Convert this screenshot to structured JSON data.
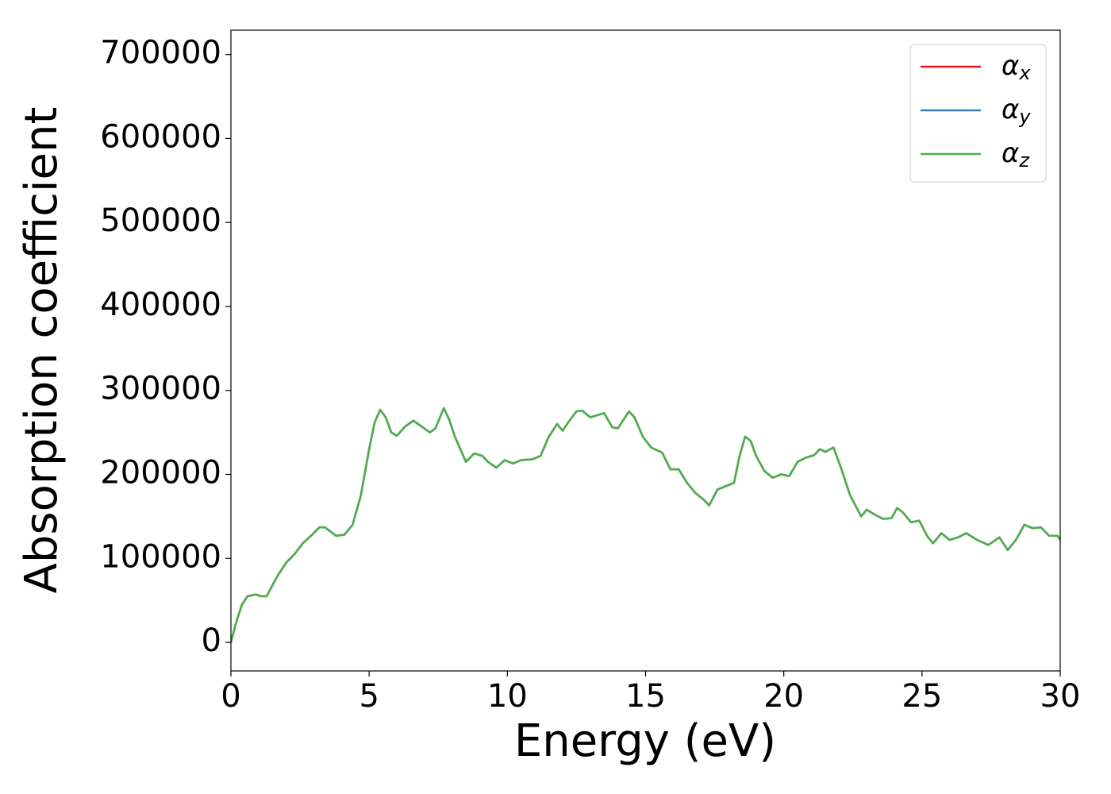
{
  "chart_data": {
    "type": "line",
    "xlabel": "Energy (eV)",
    "ylabel": "Absorption coefficient",
    "x": [
      0,
      0.2,
      0.4,
      0.6,
      0.9,
      1.1,
      1.3,
      1.5,
      1.7,
      2.0,
      2.3,
      2.6,
      2.9,
      3.2,
      3.4,
      3.6,
      3.8,
      4.1,
      4.4,
      4.7,
      5.0,
      5.2,
      5.4,
      5.6,
      5.8,
      6.0,
      6.3,
      6.6,
      6.9,
      7.2,
      7.4,
      7.7,
      7.9,
      8.1,
      8.3,
      8.5,
      8.8,
      9.1,
      9.3,
      9.6,
      9.9,
      10.2,
      10.5,
      10.9,
      11.2,
      11.5,
      11.8,
      12.0,
      12.2,
      12.5,
      12.7,
      13.0,
      13.3,
      13.5,
      13.8,
      14.0,
      14.4,
      14.6,
      14.9,
      15.2,
      15.6,
      15.9,
      16.2,
      16.5,
      16.8,
      17.1,
      17.3,
      17.6,
      17.9,
      18.2,
      18.4,
      18.6,
      18.8,
      19.0,
      19.3,
      19.6,
      19.9,
      20.2,
      20.5,
      20.8,
      21.1,
      21.3,
      21.5,
      21.8,
      22.1,
      22.4,
      22.8,
      23.0,
      23.3,
      23.6,
      23.9,
      24.1,
      24.3,
      24.6,
      24.9,
      25.2,
      25.4,
      25.7,
      26.0,
      26.3,
      26.6,
      27.0,
      27.4,
      27.8,
      28.1,
      28.4,
      28.7,
      29.0,
      29.3,
      29.6,
      29.9,
      30.0
    ],
    "series": [
      {
        "name": "αx",
        "color": "#e41a1c",
        "values": [
          0,
          25000,
          45000,
          55000,
          57000,
          55000,
          55000,
          68000,
          80000,
          95000,
          105000,
          118000,
          127000,
          137000,
          137000,
          132000,
          127000,
          128000,
          140000,
          175000,
          230000,
          262000,
          277000,
          268000,
          250000,
          246000,
          257000,
          264000,
          257000,
          250000,
          255000,
          279000,
          265000,
          245000,
          230000,
          215000,
          225000,
          222000,
          215000,
          208000,
          217000,
          213000,
          217000,
          218000,
          222000,
          245000,
          260000,
          252000,
          262000,
          275000,
          276000,
          268000,
          271000,
          273000,
          256000,
          255000,
          275000,
          268000,
          245000,
          232000,
          226000,
          206000,
          206000,
          190000,
          178000,
          170000,
          163000,
          182000,
          186000,
          190000,
          222000,
          245000,
          240000,
          222000,
          204000,
          196000,
          200000,
          198000,
          215000,
          220000,
          223000,
          230000,
          227000,
          232000,
          205000,
          175000,
          150000,
          158000,
          152000,
          147000,
          148000,
          160000,
          155000,
          143000,
          145000,
          126000,
          118000,
          130000,
          122000,
          125000,
          130000,
          122000,
          116000,
          125000,
          110000,
          122000,
          140000,
          136000,
          137000,
          127000,
          127000,
          122000
        ]
      },
      {
        "name": "αy",
        "color": "#377eb8",
        "values": [
          0,
          25000,
          45000,
          55000,
          57000,
          55000,
          55000,
          68000,
          80000,
          95000,
          105000,
          118000,
          127000,
          137000,
          137000,
          132000,
          127000,
          128000,
          140000,
          175000,
          230000,
          262000,
          277000,
          268000,
          250000,
          246000,
          257000,
          264000,
          257000,
          250000,
          255000,
          279000,
          265000,
          245000,
          230000,
          215000,
          225000,
          222000,
          215000,
          208000,
          217000,
          213000,
          217000,
          218000,
          222000,
          245000,
          260000,
          252000,
          262000,
          275000,
          276000,
          268000,
          271000,
          273000,
          256000,
          255000,
          275000,
          268000,
          245000,
          232000,
          226000,
          206000,
          206000,
          190000,
          178000,
          170000,
          163000,
          182000,
          186000,
          190000,
          222000,
          245000,
          240000,
          222000,
          204000,
          196000,
          200000,
          198000,
          215000,
          220000,
          223000,
          230000,
          227000,
          232000,
          205000,
          175000,
          150000,
          158000,
          152000,
          147000,
          148000,
          160000,
          155000,
          143000,
          145000,
          126000,
          118000,
          130000,
          122000,
          125000,
          130000,
          122000,
          116000,
          125000,
          110000,
          122000,
          140000,
          136000,
          137000,
          127000,
          127000,
          122000
        ]
      },
      {
        "name": "αz",
        "color": "#4daf4a",
        "values": [
          0,
          25000,
          45000,
          55000,
          57000,
          55000,
          55000,
          68000,
          80000,
          95000,
          105000,
          118000,
          127000,
          137000,
          137000,
          132000,
          127000,
          128000,
          140000,
          175000,
          230000,
          262000,
          277000,
          268000,
          250000,
          246000,
          257000,
          264000,
          257000,
          250000,
          255000,
          279000,
          265000,
          245000,
          230000,
          215000,
          225000,
          222000,
          215000,
          208000,
          217000,
          213000,
          217000,
          218000,
          222000,
          245000,
          260000,
          252000,
          262000,
          275000,
          276000,
          268000,
          271000,
          273000,
          256000,
          255000,
          275000,
          268000,
          245000,
          232000,
          226000,
          206000,
          206000,
          190000,
          178000,
          170000,
          163000,
          182000,
          186000,
          190000,
          222000,
          245000,
          240000,
          222000,
          204000,
          196000,
          200000,
          198000,
          215000,
          220000,
          223000,
          230000,
          227000,
          232000,
          205000,
          175000,
          150000,
          158000,
          152000,
          147000,
          148000,
          160000,
          155000,
          143000,
          145000,
          126000,
          118000,
          130000,
          122000,
          125000,
          130000,
          122000,
          116000,
          125000,
          110000,
          122000,
          140000,
          136000,
          137000,
          127000,
          127000,
          122000
        ]
      }
    ],
    "xlim": [
      0,
      30
    ],
    "xticks": [
      0,
      5,
      10,
      15,
      20,
      25,
      30
    ],
    "ylim": [
      -34000,
      729000
    ],
    "yticks": [
      0,
      100000,
      200000,
      300000,
      400000,
      500000,
      600000,
      700000
    ],
    "grid": false,
    "legend": "upper right"
  }
}
